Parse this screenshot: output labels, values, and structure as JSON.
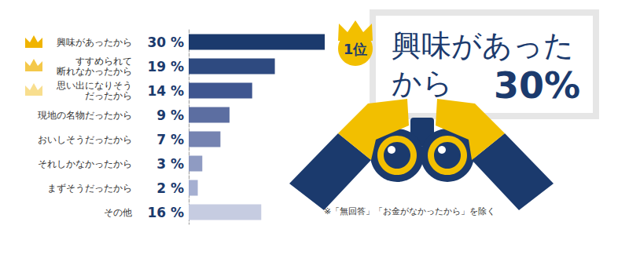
{
  "chart_data": {
    "type": "bar",
    "orientation": "horizontal",
    "categories": [
      "興味があったから",
      "すすめられて\n断れなかったから",
      "思い出になりそう\nだったから",
      "現地の名物だったから",
      "おいしそうだったから",
      "それしかなかったから",
      "まずそうだったから",
      "その他"
    ],
    "values": [
      30,
      19,
      14,
      9,
      7,
      3,
      2,
      16
    ],
    "value_labels": [
      "30 %",
      "19 %",
      "14 %",
      "9 %",
      "7 %",
      "3 %",
      "2 %",
      "16 %"
    ],
    "colors": [
      "#1b3a6d",
      "#2e4a80",
      "#3f5690",
      "#5c6ea1",
      "#7583b1",
      "#8f9bc2",
      "#a5afd1",
      "#c6cce1"
    ],
    "xlim": [
      0,
      30
    ],
    "tick_labels": "y",
    "data_labels": true,
    "grid": false,
    "annotations": [
      {
        "text": "1位"
      },
      {
        "text": "興味があった\nから"
      },
      {
        "text": "30%"
      },
      {
        "text": "※「無回答」「お金がなかったから」を除く"
      }
    ]
  }
}
